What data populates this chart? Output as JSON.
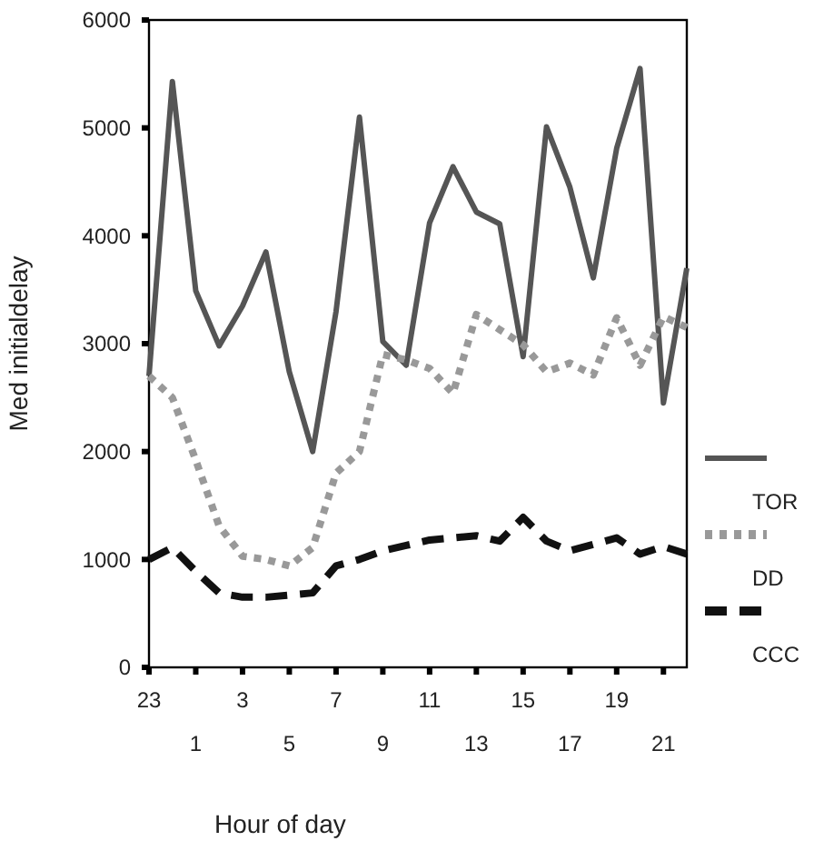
{
  "chart_data": {
    "type": "line",
    "xlabel": "Hour of day",
    "ylabel": "Med initialdelay",
    "categories": [
      "23",
      null,
      "1",
      null,
      "3",
      null,
      "5",
      null,
      "7",
      null,
      "9",
      null,
      "11",
      null,
      "13",
      null,
      "15",
      null,
      "17",
      null,
      "19",
      null,
      "21",
      null
    ],
    "ylim": [
      0,
      6000
    ],
    "yticks": [
      0,
      1000,
      2000,
      3000,
      4000,
      5000,
      6000
    ],
    "legend": "right",
    "series": [
      {
        "name": "TOR",
        "color": "#555555",
        "line_style": "solid",
        "values": [
          2700,
          5430,
          3490,
          2980,
          3350,
          3850,
          2740,
          2000,
          3300,
          5100,
          3020,
          2800,
          4120,
          4640,
          4220,
          4110,
          2880,
          5010,
          4450,
          3610,
          4810,
          5550,
          2450,
          3700
        ]
      },
      {
        "name": "DD",
        "color": "#999999",
        "line_style": "dotted",
        "values": [
          2700,
          2500,
          1920,
          1310,
          1030,
          1000,
          940,
          1110,
          1800,
          2000,
          2900,
          2850,
          2770,
          2540,
          3270,
          3130,
          2990,
          2740,
          2820,
          2710,
          3240,
          2800,
          3250,
          3150
        ]
      },
      {
        "name": "CCC",
        "color": "#111111",
        "line_style": "dashed",
        "values": [
          1000,
          1110,
          890,
          690,
          650,
          650,
          670,
          690,
          940,
          1000,
          1080,
          1130,
          1180,
          1200,
          1220,
          1170,
          1390,
          1170,
          1080,
          1140,
          1200,
          1050,
          1120,
          1050
        ]
      }
    ]
  }
}
